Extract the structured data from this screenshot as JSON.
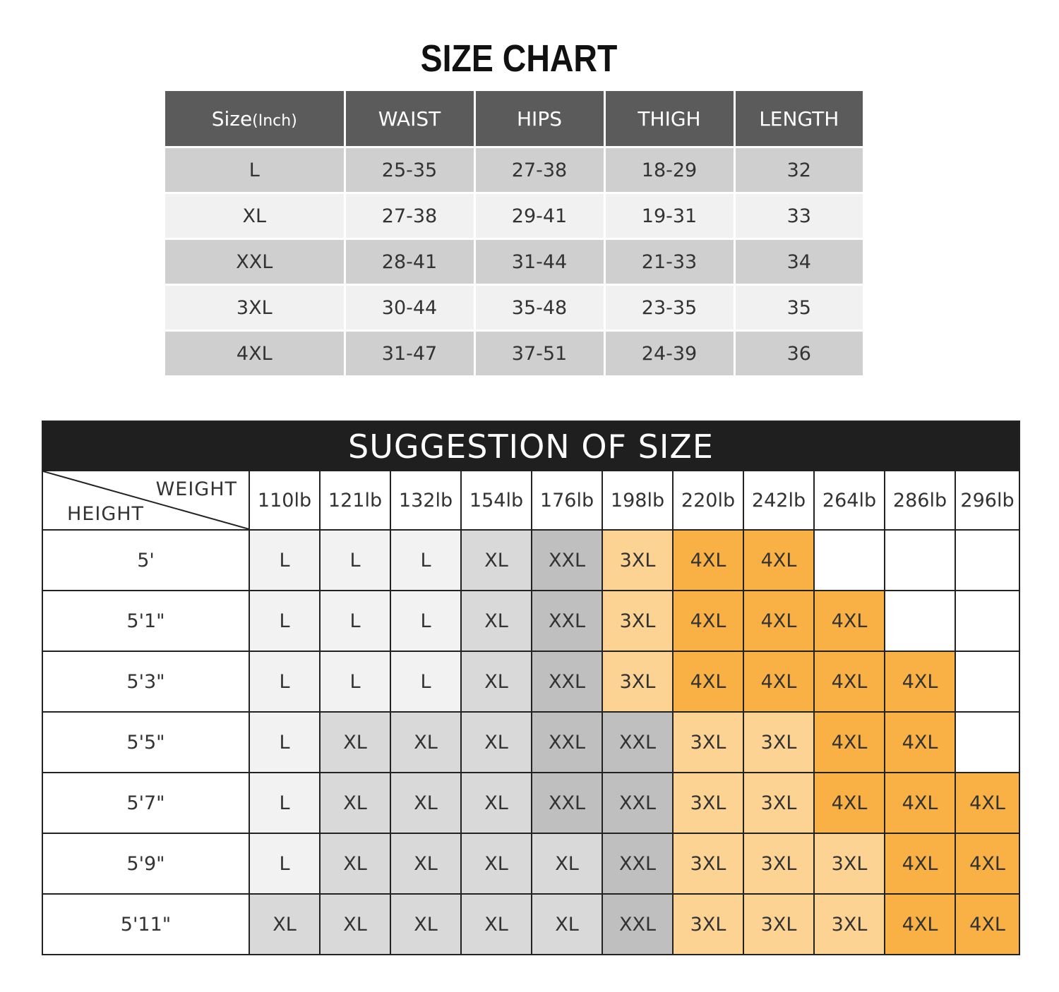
{
  "title": "SIZE CHART",
  "size_table": {
    "headers": [
      "Size",
      "WAIST",
      "HIPS",
      "THIGH",
      "LENGTH"
    ],
    "size_unit": "(Inch)",
    "rows": [
      [
        "L",
        "25-35",
        "27-38",
        "18-29",
        "32"
      ],
      [
        "XL",
        "27-38",
        "29-41",
        "19-31",
        "33"
      ],
      [
        "XXL",
        "28-41",
        "31-44",
        "21-33",
        "34"
      ],
      [
        "3XL",
        "30-44",
        "35-48",
        "23-35",
        "35"
      ],
      [
        "4XL",
        "31-47",
        "37-51",
        "24-39",
        "36"
      ]
    ]
  },
  "suggestion": {
    "title": "SUGGESTION OF SIZE",
    "corner_weight": "WEIGHT",
    "corner_height": "HEIGHT",
    "weights": [
      "110lb",
      "121lb",
      "132lb",
      "154lb",
      "176lb",
      "198lb",
      "220lb",
      "242lb",
      "264lb",
      "286lb",
      "296lb"
    ],
    "heights": [
      "5'",
      "5'1\"",
      "5'3\"",
      "5'5\"",
      "5'7\"",
      "5'9\"",
      "5'11\""
    ],
    "cells": [
      [
        "L",
        "L",
        "L",
        "XL",
        "XXL",
        "3XL",
        "4XL",
        "4XL",
        "",
        "",
        ""
      ],
      [
        "L",
        "L",
        "L",
        "XL",
        "XXL",
        "3XL",
        "4XL",
        "4XL",
        "4XL",
        "",
        ""
      ],
      [
        "L",
        "L",
        "L",
        "XL",
        "XXL",
        "3XL",
        "4XL",
        "4XL",
        "4XL",
        "4XL",
        ""
      ],
      [
        "L",
        "XL",
        "XL",
        "XL",
        "XXL",
        "XXL",
        "3XL",
        "3XL",
        "4XL",
        "4XL",
        ""
      ],
      [
        "L",
        "XL",
        "XL",
        "XL",
        "XXL",
        "XXL",
        "3XL",
        "3XL",
        "4XL",
        "4XL",
        "4XL"
      ],
      [
        "L",
        "XL",
        "XL",
        "XL",
        "XL",
        "XXL",
        "3XL",
        "3XL",
        "3XL",
        "4XL",
        "4XL"
      ],
      [
        "XL",
        "XL",
        "XL",
        "XL",
        "XL",
        "XXL",
        "3XL",
        "3XL",
        "3XL",
        "4XL",
        "4XL"
      ]
    ]
  },
  "colors": {
    "header_bg": "#5b5b5b",
    "row_dark": "#cfcfcf",
    "row_light": "#f1f1f1",
    "suggestion_title_bg": "#1f1f1f",
    "size_L": "#f2f2f2",
    "size_XL": "#d9d9d9",
    "size_XXL": "#bfbfbf",
    "size_3XL": "#fdd394",
    "size_4XL": "#f9b044"
  }
}
